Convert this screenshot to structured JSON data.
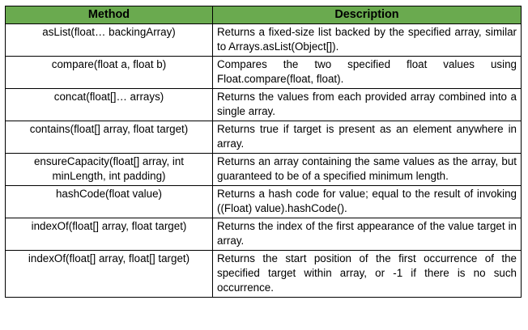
{
  "table": {
    "headers": [
      "Method",
      "Description"
    ],
    "rows": [
      {
        "method": "asList(float… backingArray)",
        "description": "Returns a fixed-size list backed by the specified array, similar to Arrays.asList(Object[])."
      },
      {
        "method": "compare(float a, float b)",
        "description": "Compares the two specified float values using Float.compare(float, float)."
      },
      {
        "method": "concat(float[]… arrays)",
        "description": "Returns the values from each provided array combined into a single array."
      },
      {
        "method": "contains(float[] array, float target)",
        "description": "Returns true if target is present as an element anywhere in array."
      },
      {
        "method": "ensureCapacity(float[] array, int minLength, int padding)",
        "description": "Returns an array containing the same values as the array, but guaranteed to be of a specified minimum length."
      },
      {
        "method": "hashCode(float value)",
        "description": "Returns a hash code for value; equal to the result of invoking ((Float) value).hashCode()."
      },
      {
        "method": "indexOf(float[] array, float target)",
        "description": "Returns the index of the first appearance of the value target in array."
      },
      {
        "method": "indexOf(float[] array, float[] target)",
        "description": "Returns the start position of the first occurrence of the specified target within array, or -1 if there is no such occurrence."
      }
    ]
  },
  "colors": {
    "header_background": "#6aaa4f",
    "border": "#000000",
    "text": "#000000"
  }
}
